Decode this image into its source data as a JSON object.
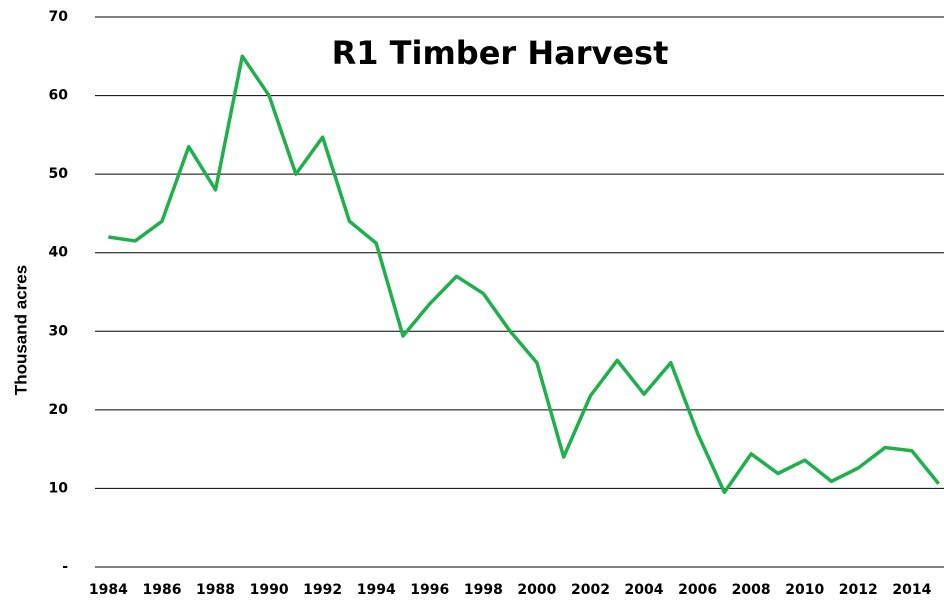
{
  "chart_data": {
    "type": "line",
    "title": "R1 Timber  Harvest",
    "ylabel": "Thousand acres",
    "x": [
      1984,
      1985,
      1986,
      1987,
      1988,
      1989,
      1990,
      1991,
      1992,
      1993,
      1994,
      1995,
      1996,
      1997,
      1998,
      1999,
      2000,
      2001,
      2002,
      2003,
      2004,
      2005,
      2006,
      2007,
      2008,
      2009,
      2010,
      2011,
      2012,
      2013,
      2014,
      2015
    ],
    "series": [
      {
        "name": "R1 Timber Harvest",
        "color": "#1db04b",
        "values": [
          42,
          41.5,
          44,
          53.5,
          48,
          65,
          60,
          50,
          54.7,
          44,
          41.2,
          29.4,
          33.5,
          37,
          34.8,
          30,
          26,
          14,
          21.8,
          26.3,
          22,
          26,
          17,
          9.5,
          14.4,
          11.9,
          13.6,
          10.9,
          12.6,
          15.2,
          14.8,
          10.6
        ]
      }
    ],
    "xlim": [
      1983.5,
      2015.2
    ],
    "xticks": [
      1984,
      1986,
      1988,
      1990,
      1992,
      1994,
      1996,
      1998,
      2000,
      2002,
      2004,
      2006,
      2008,
      2010,
      2012,
      2014
    ],
    "ylim": [
      0,
      70
    ],
    "yticks": [
      {
        "value": 0,
        "label": "-"
      },
      10,
      20,
      30,
      40,
      50,
      60,
      70
    ],
    "grid": true
  }
}
